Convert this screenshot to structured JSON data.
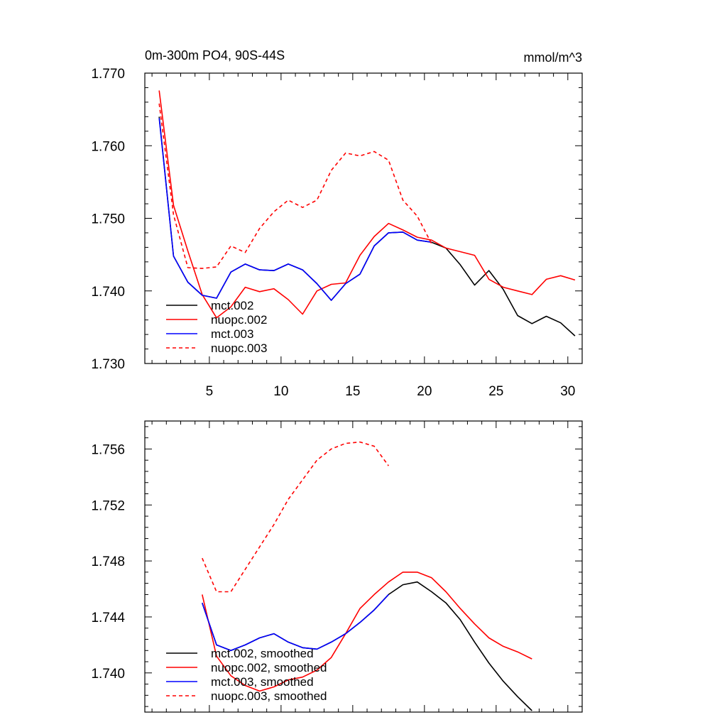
{
  "colors": {
    "mct.002": "#000000",
    "nuopc.002": "#ff0000",
    "mct.003": "#0000ff",
    "nuopc.003": "#ff0000"
  },
  "chart_data": [
    {
      "type": "line",
      "title": "0m-300m PO4, 90S-44S",
      "units": "mmol/m^3",
      "xlabel": "",
      "ylabel": "",
      "xlim": [
        0.5,
        31
      ],
      "ylim": [
        1.73,
        1.77
      ],
      "xticks": [
        5,
        10,
        15,
        20,
        25,
        30
      ],
      "yticks": [
        1.73,
        1.74,
        1.75,
        1.76,
        1.77
      ],
      "ytick_labels": [
        "1.730",
        "1.740",
        "1.750",
        "1.760",
        "1.770"
      ],
      "legend_position": "bottom-left",
      "series": [
        {
          "name": "mct.002",
          "style": "solid",
          "color": "#000000",
          "x": [
            1.5,
            2.5,
            3.5,
            4.5,
            5.5,
            6.5,
            7.5,
            8.5,
            9.5,
            10.5,
            11.5,
            12.5,
            13.5,
            14.5,
            15.5,
            16.5,
            17.5,
            18.5,
            19.5,
            20.5,
            21.5,
            22.5,
            23.5,
            24.5,
            25.5,
            26.5,
            27.5,
            28.5,
            29.5,
            30.5
          ],
          "y": [
            1.764,
            1.7448,
            1.7412,
            1.7394,
            1.739,
            1.7426,
            1.7437,
            1.7429,
            1.7428,
            1.7437,
            1.7429,
            1.741,
            1.7387,
            1.741,
            1.7423,
            1.7462,
            1.748,
            1.7481,
            1.747,
            1.7467,
            1.7459,
            1.7436,
            1.7408,
            1.7428,
            1.7402,
            1.7366,
            1.7355,
            1.7365,
            1.7356,
            1.7338
          ]
        },
        {
          "name": "nuopc.002",
          "style": "solid",
          "color": "#ff0000",
          "x": [
            1.5,
            2.5,
            3.5,
            4.5,
            5.5,
            6.5,
            7.5,
            8.5,
            9.5,
            10.5,
            11.5,
            12.5,
            13.5,
            14.5,
            15.5,
            16.5,
            17.5,
            18.5,
            19.5,
            20.5,
            21.5,
            22.5,
            23.5,
            24.5,
            25.5,
            26.5,
            27.5,
            28.5,
            29.5,
            30.5
          ],
          "y": [
            1.7676,
            1.7518,
            1.7455,
            1.7395,
            1.7363,
            1.7378,
            1.7405,
            1.7399,
            1.7403,
            1.7388,
            1.7368,
            1.74,
            1.7409,
            1.7411,
            1.7449,
            1.7475,
            1.7493,
            1.7484,
            1.7474,
            1.747,
            1.7459,
            1.7454,
            1.7449,
            1.7416,
            1.7405,
            1.74,
            1.7395,
            1.7416,
            1.7421,
            1.7415
          ]
        },
        {
          "name": "mct.003",
          "style": "solid",
          "color": "#0000ff",
          "x": [
            1.5,
            2.5,
            3.5,
            4.5,
            5.5,
            6.5,
            7.5,
            8.5,
            9.5,
            10.5,
            11.5,
            12.5,
            13.5,
            14.5,
            15.5,
            16.5,
            17.5,
            18.5,
            19.5,
            20.5
          ],
          "y": [
            1.7638,
            1.7448,
            1.7412,
            1.7394,
            1.739,
            1.7426,
            1.7437,
            1.7429,
            1.7428,
            1.7437,
            1.7429,
            1.741,
            1.7387,
            1.741,
            1.7423,
            1.7462,
            1.748,
            1.7481,
            1.747,
            1.7467
          ]
        },
        {
          "name": "nuopc.003",
          "style": "dashed",
          "color": "#ff0000",
          "x": [
            1.5,
            2.5,
            3.5,
            4.5,
            5.5,
            6.5,
            7.5,
            8.5,
            9.5,
            10.5,
            11.5,
            12.5,
            13.5,
            14.5,
            15.5,
            16.5,
            17.5,
            18.5,
            19.5,
            20.5
          ],
          "y": [
            1.7658,
            1.7505,
            1.7432,
            1.7431,
            1.7433,
            1.7462,
            1.7453,
            1.7486,
            1.7509,
            1.7525,
            1.7515,
            1.7525,
            1.7566,
            1.759,
            1.7586,
            1.7592,
            1.758,
            1.7525,
            1.7503,
            1.7465
          ]
        }
      ]
    },
    {
      "type": "line",
      "title": "",
      "xlabel": "",
      "ylabel": "",
      "xlim": [
        0.5,
        31
      ],
      "ylim": [
        1.7372,
        1.758
      ],
      "xticks": [
        5,
        10,
        15,
        20,
        25,
        30
      ],
      "yticks": [
        1.74,
        1.744,
        1.748,
        1.752,
        1.756
      ],
      "ytick_labels": [
        "1.740",
        "1.744",
        "1.748",
        "1.752",
        "1.756"
      ],
      "legend_position": "bottom-left",
      "series": [
        {
          "name": "mct.002, smoothed",
          "style": "solid",
          "color": "#000000",
          "x": [
            4.5,
            5.5,
            6.5,
            7.5,
            8.5,
            9.5,
            10.5,
            11.5,
            12.5,
            13.5,
            14.5,
            15.5,
            16.5,
            17.5,
            18.5,
            19.5,
            20.5,
            21.5,
            22.5,
            23.5,
            24.5,
            25.5,
            26.5,
            27.5
          ],
          "y": [
            1.745,
            1.742,
            1.7416,
            1.742,
            1.7425,
            1.7428,
            1.7422,
            1.7418,
            1.7417,
            1.7422,
            1.7428,
            1.7436,
            1.7445,
            1.7456,
            1.7463,
            1.7465,
            1.7458,
            1.745,
            1.7438,
            1.7422,
            1.7407,
            1.7394,
            1.7383,
            1.7373
          ]
        },
        {
          "name": "nuopc.002, smoothed",
          "style": "solid",
          "color": "#ff0000",
          "x": [
            4.5,
            5.5,
            6.5,
            7.5,
            8.5,
            9.5,
            10.5,
            11.5,
            12.5,
            13.5,
            14.5,
            15.5,
            16.5,
            17.5,
            18.5,
            19.5,
            20.5,
            21.5,
            22.5,
            23.5,
            24.5,
            25.5,
            26.5,
            27.5
          ],
          "y": [
            1.7456,
            1.7412,
            1.7398,
            1.7391,
            1.7387,
            1.739,
            1.7395,
            1.7397,
            1.7402,
            1.7411,
            1.7428,
            1.7446,
            1.7456,
            1.7465,
            1.7472,
            1.7472,
            1.7468,
            1.7458,
            1.7446,
            1.7435,
            1.7425,
            1.7419,
            1.7415,
            1.741
          ]
        },
        {
          "name": "mct.003, smoothed",
          "style": "solid",
          "color": "#0000ff",
          "x": [
            4.5,
            5.5,
            6.5,
            7.5,
            8.5,
            9.5,
            10.5,
            11.5,
            12.5,
            13.5,
            14.5,
            15.5,
            16.5,
            17.5
          ],
          "y": [
            1.745,
            1.742,
            1.7416,
            1.742,
            1.7425,
            1.7428,
            1.7422,
            1.7418,
            1.7417,
            1.7422,
            1.7428,
            1.7436,
            1.7445,
            1.7456
          ]
        },
        {
          "name": "nuopc.003, smoothed",
          "style": "dashed",
          "color": "#ff0000",
          "x": [
            4.5,
            5.5,
            6.5,
            7.5,
            8.5,
            9.5,
            10.5,
            11.5,
            12.5,
            13.5,
            14.5,
            15.5,
            16.5,
            17.5
          ],
          "y": [
            1.7482,
            1.7458,
            1.7458,
            1.7474,
            1.749,
            1.7506,
            1.7524,
            1.7538,
            1.7552,
            1.756,
            1.7564,
            1.7565,
            1.7562,
            1.7548
          ]
        }
      ]
    }
  ]
}
